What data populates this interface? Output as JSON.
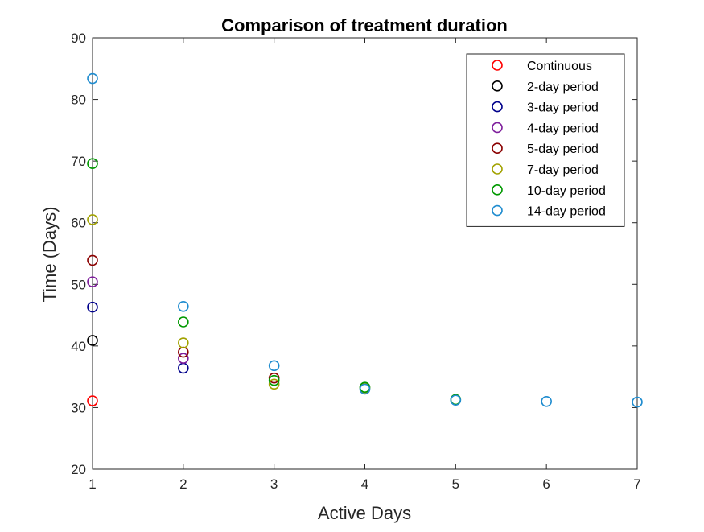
{
  "chart_data": {
    "type": "scatter",
    "title": "Comparison of treatment duration",
    "xlabel": "Active Days",
    "ylabel": "Time (Days)",
    "xlim": [
      1,
      7
    ],
    "ylim": [
      20,
      90
    ],
    "xticks": [
      "1",
      "2",
      "3",
      "4",
      "5",
      "6",
      "7"
    ],
    "yticks": [
      "20",
      "30",
      "40",
      "50",
      "60",
      "70",
      "80",
      "90"
    ],
    "grid": false,
    "legend_position": "top-right",
    "marker": "open-circle",
    "series": [
      {
        "name": "Continuous",
        "color": "#ff0000",
        "points": [
          [
            1,
            31.1
          ]
        ]
      },
      {
        "name": "2-day period",
        "color": "#000000",
        "points": [
          [
            1,
            40.9
          ]
        ]
      },
      {
        "name": "3-day period",
        "color": "#00008b",
        "points": [
          [
            1,
            46.3
          ],
          [
            2,
            36.4
          ]
        ]
      },
      {
        "name": "4-day period",
        "color": "#7e1e9c",
        "points": [
          [
            1,
            50.4
          ],
          [
            2,
            38.0
          ]
        ]
      },
      {
        "name": "5-day period",
        "color": "#8b0000",
        "points": [
          [
            1,
            53.9
          ],
          [
            2,
            39.0
          ],
          [
            3,
            34.8
          ]
        ]
      },
      {
        "name": "7-day period",
        "color": "#a2a200",
        "points": [
          [
            1,
            60.5
          ],
          [
            2,
            40.5
          ],
          [
            3,
            33.8
          ],
          [
            4,
            33.2
          ]
        ]
      },
      {
        "name": "10-day period",
        "color": "#009900",
        "points": [
          [
            1,
            69.6
          ],
          [
            2,
            43.9
          ],
          [
            3,
            34.4
          ],
          [
            4,
            33.3
          ],
          [
            5,
            31.3
          ]
        ]
      },
      {
        "name": "14-day period",
        "color": "#1f8ccf",
        "points": [
          [
            1,
            83.4
          ],
          [
            2,
            46.4
          ],
          [
            3,
            36.8
          ],
          [
            4,
            33.0
          ],
          [
            5,
            31.2
          ],
          [
            6,
            31.0
          ],
          [
            7,
            30.9
          ]
        ]
      }
    ]
  }
}
